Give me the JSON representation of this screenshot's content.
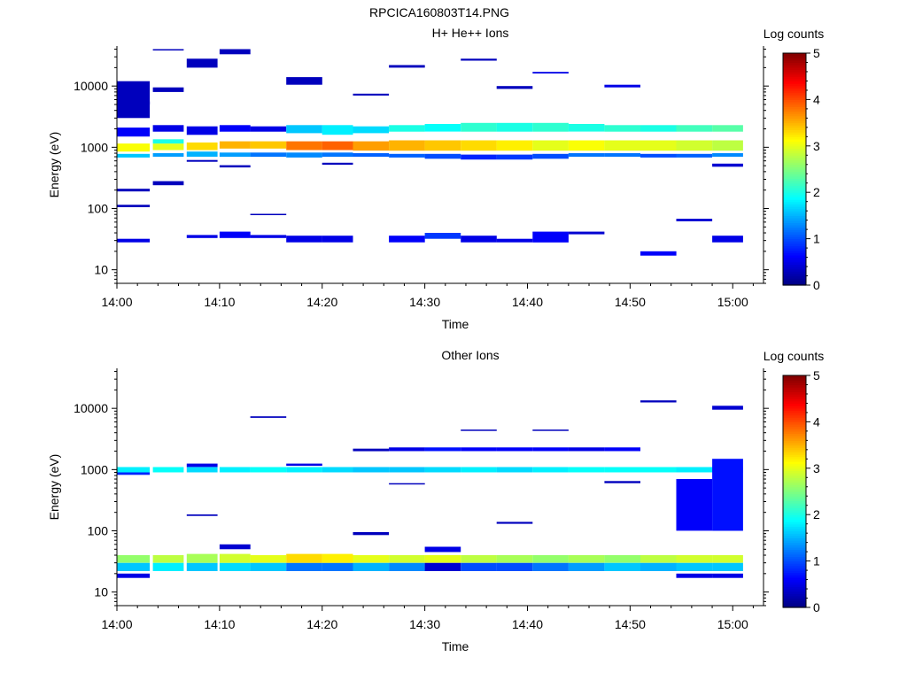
{
  "figure": {
    "title": "RPCICA160803T14.PNG"
  },
  "colors": {
    "background": "#ffffff",
    "axis": "#000000"
  },
  "chart_data": [
    {
      "type": "heatmap",
      "title": "H+ He++ Ions",
      "xlabel": "Time",
      "ylabel": "Energy (eV)",
      "x_ticks": [
        "14:00",
        "14:10",
        "14:20",
        "14:30",
        "14:40",
        "14:50",
        "15:00"
      ],
      "x_range_minutes": [
        0,
        63
      ],
      "y_scale": "log",
      "y_ticks": [
        "10",
        "100",
        "1000",
        "10000"
      ],
      "y_range": [
        6,
        45000
      ],
      "colorbar": {
        "label": "Log counts",
        "range": [
          0,
          5
        ],
        "ticks": [
          "0",
          "1",
          "2",
          "3",
          "4",
          "5"
        ],
        "colormap": "jet"
      },
      "cells": [
        [
          0,
          3.2,
          3000,
          12000,
          0.3
        ],
        [
          0,
          3.2,
          850,
          1150,
          3.1
        ],
        [
          0,
          3.2,
          680,
          780,
          1.6
        ],
        [
          0,
          3.2,
          1500,
          2100,
          0.6
        ],
        [
          0,
          3.2,
          28,
          32,
          0.5
        ],
        [
          0,
          3.2,
          190,
          210,
          0.3
        ],
        [
          0,
          3.2,
          105,
          115,
          0.3
        ],
        [
          0,
          3.2,
          5000,
          5600,
          0.3
        ],
        [
          3.5,
          6.5,
          1800,
          2300,
          0.5
        ],
        [
          3.5,
          6.5,
          900,
          1150,
          3.0
        ],
        [
          3.5,
          6.5,
          1150,
          1350,
          2.0
        ],
        [
          3.5,
          6.5,
          700,
          800,
          1.4
        ],
        [
          3.5,
          6.5,
          38000,
          40000,
          0.3
        ],
        [
          3.5,
          6.5,
          8000,
          9500,
          0.3
        ],
        [
          3.5,
          6.5,
          240,
          280,
          0.3
        ],
        [
          6.8,
          9.8,
          1600,
          2200,
          0.5
        ],
        [
          6.8,
          9.8,
          900,
          1200,
          3.3
        ],
        [
          6.8,
          9.8,
          700,
          850,
          1.5
        ],
        [
          6.8,
          9.8,
          33,
          37,
          0.5
        ],
        [
          6.8,
          9.8,
          20000,
          28000,
          0.3
        ],
        [
          6.8,
          9.8,
          580,
          620,
          0.3
        ],
        [
          10,
          13,
          1800,
          2300,
          0.6
        ],
        [
          10,
          13,
          950,
          1250,
          3.5
        ],
        [
          10,
          13,
          700,
          820,
          1.4
        ],
        [
          10,
          13,
          33,
          42,
          0.6
        ],
        [
          10,
          13,
          33000,
          40000,
          0.3
        ],
        [
          10,
          13,
          470,
          510,
          0.3
        ],
        [
          13,
          16.5,
          1800,
          2200,
          0.5
        ],
        [
          13,
          16.5,
          950,
          1250,
          3.4
        ],
        [
          13,
          16.5,
          700,
          820,
          1.2
        ],
        [
          13,
          16.5,
          33,
          37,
          0.5
        ],
        [
          13,
          16.5,
          78,
          82,
          0.3
        ],
        [
          16.5,
          20,
          1700,
          2300,
          1.6
        ],
        [
          16.5,
          20,
          900,
          1250,
          3.8
        ],
        [
          16.5,
          20,
          680,
          820,
          1.3
        ],
        [
          16.5,
          20,
          28,
          36,
          0.5
        ],
        [
          16.5,
          20,
          10500,
          14000,
          0.3
        ],
        [
          20,
          23,
          1600,
          2300,
          1.8
        ],
        [
          20,
          23,
          900,
          1250,
          3.9
        ],
        [
          20,
          23,
          700,
          820,
          1.2
        ],
        [
          20,
          23,
          28,
          36,
          0.5
        ],
        [
          20,
          23,
          520,
          560,
          0.3
        ],
        [
          23,
          26.5,
          1700,
          2200,
          1.7
        ],
        [
          23,
          26.5,
          880,
          1250,
          3.6
        ],
        [
          23,
          26.5,
          700,
          800,
          1.1
        ],
        [
          23,
          26.5,
          7000,
          7500,
          0.3
        ],
        [
          26.5,
          30,
          1800,
          2300,
          2.0
        ],
        [
          26.5,
          30,
          880,
          1300,
          3.5
        ],
        [
          26.5,
          30,
          680,
          780,
          1.1
        ],
        [
          26.5,
          30,
          28,
          36,
          0.6
        ],
        [
          26.5,
          30,
          20000,
          22000,
          0.3
        ],
        [
          30,
          33.5,
          1800,
          2400,
          1.9
        ],
        [
          30,
          33.5,
          880,
          1300,
          3.4
        ],
        [
          30,
          33.5,
          650,
          780,
          1.0
        ],
        [
          30,
          33.5,
          32,
          40,
          0.9
        ],
        [
          33.5,
          37,
          1800,
          2500,
          2.1
        ],
        [
          33.5,
          37,
          880,
          1300,
          3.3
        ],
        [
          33.5,
          37,
          630,
          760,
          0.8
        ],
        [
          33.5,
          37,
          28,
          36,
          0.5
        ],
        [
          33.5,
          37,
          26000,
          28000,
          0.3
        ],
        [
          37,
          40.5,
          1800,
          2500,
          2.0
        ],
        [
          37,
          40.5,
          880,
          1300,
          3.2
        ],
        [
          37,
          40.5,
          630,
          760,
          0.9
        ],
        [
          37,
          40.5,
          28,
          32,
          0.5
        ],
        [
          37,
          40.5,
          9000,
          10000,
          0.3
        ],
        [
          40.5,
          44,
          1800,
          2500,
          2.1
        ],
        [
          40.5,
          44,
          880,
          1300,
          3.0
        ],
        [
          40.5,
          44,
          650,
          780,
          1.0
        ],
        [
          40.5,
          44,
          28,
          42,
          0.6
        ],
        [
          40.5,
          44,
          16000,
          17000,
          0.5
        ],
        [
          44,
          47.5,
          1800,
          2400,
          2.0
        ],
        [
          44,
          47.5,
          880,
          1300,
          3.1
        ],
        [
          44,
          47.5,
          700,
          800,
          1.2
        ],
        [
          44,
          47.5,
          38,
          42,
          0.4
        ],
        [
          47.5,
          51,
          1800,
          2300,
          2.1
        ],
        [
          47.5,
          51,
          880,
          1300,
          3.0
        ],
        [
          47.5,
          51,
          700,
          800,
          1.2
        ],
        [
          47.5,
          51,
          9500,
          10500,
          0.5
        ],
        [
          51,
          54.5,
          1800,
          2300,
          2.0
        ],
        [
          51,
          54.5,
          880,
          1300,
          3.0
        ],
        [
          51,
          54.5,
          680,
          780,
          1.0
        ],
        [
          51,
          54.5,
          17,
          20,
          0.6
        ],
        [
          54.5,
          58,
          1800,
          2300,
          2.2
        ],
        [
          54.5,
          58,
          880,
          1300,
          2.9
        ],
        [
          54.5,
          58,
          680,
          780,
          1.1
        ],
        [
          54.5,
          58,
          62,
          68,
          0.4
        ],
        [
          58,
          61,
          1800,
          2300,
          2.3
        ],
        [
          58,
          61,
          880,
          1300,
          2.8
        ],
        [
          58,
          61,
          700,
          800,
          1.3
        ],
        [
          58,
          61,
          28,
          36,
          0.5
        ],
        [
          58,
          61,
          480,
          540,
          0.4
        ]
      ]
    },
    {
      "type": "heatmap",
      "title": "Other Ions",
      "xlabel": "Time",
      "ylabel": "Energy (eV)",
      "x_ticks": [
        "14:00",
        "14:10",
        "14:20",
        "14:30",
        "14:40",
        "14:50",
        "15:00"
      ],
      "x_range_minutes": [
        0,
        63
      ],
      "y_scale": "log",
      "y_ticks": [
        "10",
        "100",
        "1000",
        "10000"
      ],
      "y_range": [
        6,
        45000
      ],
      "colorbar": {
        "label": "Log counts",
        "range": [
          0,
          5
        ],
        "ticks": [
          "0",
          "1",
          "2",
          "3",
          "4",
          "5"
        ],
        "colormap": "jet"
      },
      "cells": [
        [
          0,
          3.2,
          900,
          1100,
          1.8
        ],
        [
          0,
          3.2,
          820,
          900,
          0.8
        ],
        [
          0,
          3.2,
          22,
          30,
          1.6
        ],
        [
          0,
          3.2,
          30,
          40,
          2.6
        ],
        [
          0,
          3.2,
          17,
          20,
          0.5
        ],
        [
          3.5,
          6.5,
          900,
          1100,
          1.9
        ],
        [
          3.5,
          6.5,
          22,
          30,
          1.8
        ],
        [
          3.5,
          6.5,
          30,
          40,
          2.8
        ],
        [
          6.8,
          9.8,
          900,
          1100,
          1.7
        ],
        [
          6.8,
          9.8,
          1100,
          1250,
          0.5
        ],
        [
          6.8,
          9.8,
          22,
          30,
          1.6
        ],
        [
          6.8,
          9.8,
          30,
          42,
          2.7
        ],
        [
          6.8,
          9.8,
          175,
          185,
          0.3
        ],
        [
          10,
          13,
          900,
          1100,
          1.8
        ],
        [
          10,
          13,
          22,
          30,
          1.7
        ],
        [
          10,
          13,
          30,
          42,
          2.9
        ],
        [
          10,
          13,
          50,
          60,
          0.4
        ],
        [
          13,
          16.5,
          900,
          1100,
          1.9
        ],
        [
          13,
          16.5,
          22,
          30,
          1.6
        ],
        [
          13,
          16.5,
          30,
          40,
          3.0
        ],
        [
          13,
          16.5,
          7000,
          7400,
          0.3
        ],
        [
          16.5,
          20,
          900,
          1100,
          1.8
        ],
        [
          16.5,
          20,
          1150,
          1250,
          0.5
        ],
        [
          16.5,
          20,
          22,
          30,
          1.2
        ],
        [
          16.5,
          20,
          30,
          42,
          3.3
        ],
        [
          20,
          23,
          900,
          1100,
          1.7
        ],
        [
          20,
          23,
          22,
          30,
          1.2
        ],
        [
          20,
          23,
          30,
          42,
          3.2
        ],
        [
          23,
          26.5,
          900,
          1100,
          1.6
        ],
        [
          23,
          26.5,
          22,
          30,
          1.5
        ],
        [
          23,
          26.5,
          30,
          40,
          3.0
        ],
        [
          23,
          26.5,
          2000,
          2200,
          0.3
        ],
        [
          23,
          26.5,
          85,
          95,
          0.3
        ],
        [
          26.5,
          30,
          900,
          1100,
          1.6
        ],
        [
          26.5,
          30,
          22,
          30,
          1.3
        ],
        [
          26.5,
          30,
          30,
          40,
          2.9
        ],
        [
          26.5,
          30,
          2000,
          2300,
          0.5
        ],
        [
          26.5,
          30,
          570,
          600,
          0.3
        ],
        [
          30,
          33.5,
          900,
          1100,
          1.7
        ],
        [
          30,
          33.5,
          22,
          30,
          0.4
        ],
        [
          30,
          33.5,
          30,
          40,
          3.0
        ],
        [
          30,
          33.5,
          2000,
          2300,
          0.7
        ],
        [
          30,
          33.5,
          45,
          55,
          0.5
        ],
        [
          33.5,
          37,
          900,
          1100,
          1.8
        ],
        [
          33.5,
          37,
          22,
          30,
          1.0
        ],
        [
          33.5,
          37,
          30,
          40,
          2.8
        ],
        [
          33.5,
          37,
          2000,
          2300,
          0.6
        ],
        [
          33.5,
          37,
          4300,
          4500,
          0.3
        ],
        [
          37,
          40.5,
          900,
          1100,
          1.7
        ],
        [
          37,
          40.5,
          22,
          30,
          1.0
        ],
        [
          37,
          40.5,
          30,
          40,
          2.7
        ],
        [
          37,
          40.5,
          2000,
          2300,
          0.6
        ],
        [
          37,
          40.5,
          130,
          140,
          0.3
        ],
        [
          40.5,
          44,
          900,
          1100,
          1.8
        ],
        [
          40.5,
          44,
          22,
          30,
          1.2
        ],
        [
          40.5,
          44,
          30,
          40,
          2.6
        ],
        [
          40.5,
          44,
          2000,
          2300,
          0.6
        ],
        [
          40.5,
          44,
          4300,
          4500,
          0.3
        ],
        [
          44,
          47.5,
          900,
          1100,
          1.9
        ],
        [
          44,
          47.5,
          22,
          30,
          1.4
        ],
        [
          44,
          47.5,
          30,
          40,
          2.7
        ],
        [
          44,
          47.5,
          2000,
          2300,
          0.5
        ],
        [
          47.5,
          51,
          900,
          1100,
          1.9
        ],
        [
          47.5,
          51,
          22,
          30,
          1.6
        ],
        [
          47.5,
          51,
          30,
          40,
          2.6
        ],
        [
          47.5,
          51,
          2000,
          2300,
          0.6
        ],
        [
          47.5,
          51,
          600,
          650,
          0.3
        ],
        [
          51,
          54.5,
          900,
          1100,
          1.9
        ],
        [
          51,
          54.5,
          22,
          30,
          1.5
        ],
        [
          51,
          54.5,
          30,
          40,
          2.8
        ],
        [
          51,
          54.5,
          12500,
          13500,
          0.3
        ],
        [
          54.5,
          58,
          900,
          1100,
          1.8
        ],
        [
          54.5,
          58,
          22,
          30,
          1.6
        ],
        [
          54.5,
          58,
          30,
          40,
          2.9
        ],
        [
          54.5,
          58,
          100,
          700,
          0.6
        ],
        [
          54.5,
          58,
          17,
          20,
          0.5
        ],
        [
          58,
          61,
          900,
          1100,
          1.6
        ],
        [
          58,
          61,
          22,
          30,
          1.6
        ],
        [
          58,
          61,
          30,
          40,
          2.9
        ],
        [
          58,
          61,
          100,
          1500,
          0.7
        ],
        [
          58,
          61,
          9500,
          11000,
          0.4
        ],
        [
          58,
          61,
          17,
          20,
          0.5
        ]
      ]
    }
  ]
}
